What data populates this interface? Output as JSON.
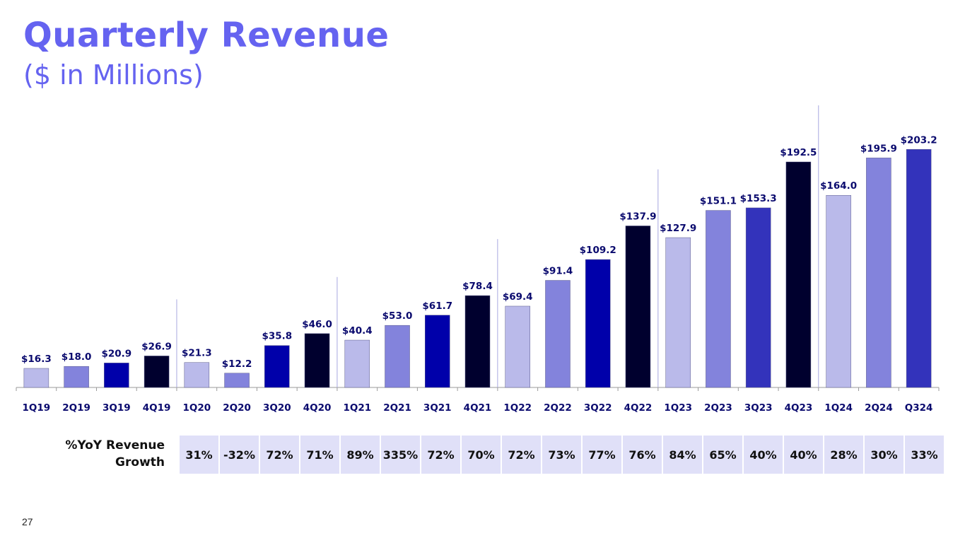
{
  "slide": {
    "title": "Quarterly Revenue",
    "subtitle": "($ in Millions)",
    "page_number": "27"
  },
  "chart_data": {
    "type": "bar",
    "title": "Quarterly Revenue",
    "subtitle": "($ in Millions)",
    "categories": [
      "1Q19",
      "2Q19",
      "3Q19",
      "4Q19",
      "1Q20",
      "2Q20",
      "3Q20",
      "4Q20",
      "1Q21",
      "2Q21",
      "3Q21",
      "4Q21",
      "1Q22",
      "2Q22",
      "3Q22",
      "4Q22",
      "1Q23",
      "2Q23",
      "3Q23",
      "4Q23",
      "1Q24",
      "2Q24",
      "Q324"
    ],
    "values": [
      16.3,
      18.0,
      20.9,
      26.9,
      21.3,
      12.2,
      35.8,
      46.0,
      40.4,
      53.0,
      61.7,
      78.4,
      69.4,
      91.4,
      109.2,
      137.9,
      127.9,
      151.1,
      153.3,
      192.5,
      164.0,
      195.9,
      203.2
    ],
    "value_labels": [
      "$16.3",
      "$18.0",
      "$20.9",
      "$26.9",
      "$21.3",
      "$12.2",
      "$35.8",
      "$46.0",
      "$40.4",
      "$53.0",
      "$61.7",
      "$78.4",
      "$69.4",
      "$91.4",
      "$109.2",
      "$137.9",
      "$127.9",
      "$151.1",
      "$153.3",
      "$192.5",
      "$164.0",
      "$195.9",
      "$203.2"
    ],
    "bar_colors": [
      "#babaea",
      "#8383dc",
      "#0000aa",
      "#00002e",
      "#babaea",
      "#8383dc",
      "#0000aa",
      "#00002e",
      "#babaea",
      "#8383dc",
      "#0000aa",
      "#00002e",
      "#babaea",
      "#8383dc",
      "#0000aa",
      "#00002e",
      "#babaea",
      "#8383dc",
      "#3333bb",
      "#00002e",
      "#babaea",
      "#8383dc",
      "#3333bb"
    ],
    "label_color": "#0a0a6e",
    "xlabel": "",
    "ylabel": "",
    "ylim": [
      0,
      210
    ],
    "grid": false,
    "year_separators_after_index": [
      3,
      7,
      11,
      15,
      19
    ]
  },
  "yoy": {
    "label": "%YoY Revenue Growth",
    "values": [
      "31%",
      "-32%",
      "72%",
      "71%",
      "89%",
      "335%",
      "72%",
      "70%",
      "72%",
      "73%",
      "77%",
      "76%",
      "84%",
      "65%",
      "40%",
      "40%",
      "28%",
      "30%",
      "33%"
    ]
  }
}
